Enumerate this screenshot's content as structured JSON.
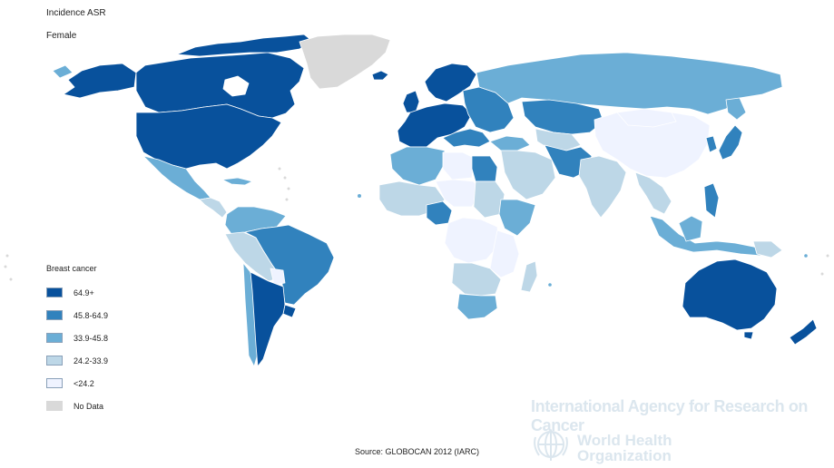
{
  "header": {
    "title": "Incidence ASR",
    "subtitle": "Female"
  },
  "legend": {
    "title": "Breast cancer",
    "items": [
      {
        "label": "64.9+",
        "color": "#08519c"
      },
      {
        "label": "45.8-64.9",
        "color": "#3182bd"
      },
      {
        "label": "33.9-45.8",
        "color": "#6baed6"
      },
      {
        "label": "24.2-33.9",
        "color": "#bdd7e7"
      },
      {
        "label": "<24.2",
        "color": "#eff3ff"
      },
      {
        "label": "No Data",
        "color": "#d9d9d9"
      }
    ]
  },
  "source": "Source: GLOBOCAN 2012 (IARC)",
  "watermark": {
    "iarc": "International Agency for Research on Cancer",
    "who_line1": "World Health",
    "who_line2": "Organization"
  }
}
